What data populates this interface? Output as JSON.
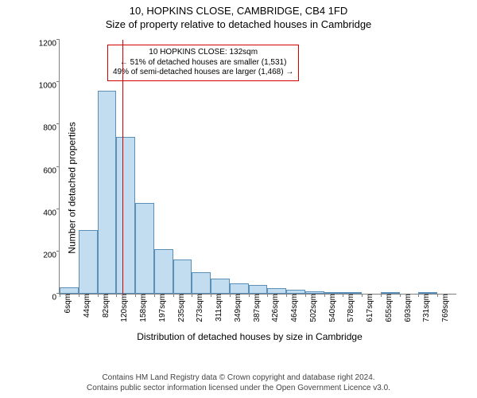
{
  "title_line1": "10, HOPKINS CLOSE, CAMBRIDGE, CB4 1FD",
  "title_line2": "Size of property relative to detached houses in Cambridge",
  "y_axis_label": "Number of detached properties",
  "x_axis_label": "Distribution of detached houses by size in Cambridge",
  "footer_line1": "Contains HM Land Registry data © Crown copyright and database right 2024.",
  "footer_line2": "Contains public sector information licensed under the Open Government Licence v3.0.",
  "chart": {
    "type": "histogram",
    "ylim": [
      0,
      1200
    ],
    "ytick_step": 200,
    "bar_fill": "#c3ddf0",
    "bar_border": "#5b8fb5",
    "axis_color": "#808080",
    "background": "#ffffff",
    "marker_color": "#d40000",
    "marker_x_value": 132,
    "x_start": 6,
    "x_bin_width": 38,
    "categories": [
      "6sqm",
      "44sqm",
      "82sqm",
      "120sqm",
      "158sqm",
      "197sqm",
      "235sqm",
      "273sqm",
      "311sqm",
      "349sqm",
      "387sqm",
      "426sqm",
      "464sqm",
      "502sqm",
      "540sqm",
      "578sqm",
      "617sqm",
      "655sqm",
      "693sqm",
      "731sqm",
      "769sqm"
    ],
    "values": [
      30,
      300,
      960,
      740,
      430,
      210,
      160,
      100,
      70,
      50,
      40,
      25,
      18,
      10,
      5,
      3,
      0,
      2,
      0,
      5,
      0
    ],
    "title_fontsize": 13,
    "label_fontsize": 12,
    "tick_fontsize": 10
  },
  "annotation": {
    "line1": "10 HOPKINS CLOSE: 132sqm",
    "line2": "← 51% of detached houses are smaller (1,531)",
    "line3": "49% of semi-detached houses are larger (1,468) →",
    "border_color": "#d40000",
    "background": "#ffffff",
    "fontsize": 10
  }
}
